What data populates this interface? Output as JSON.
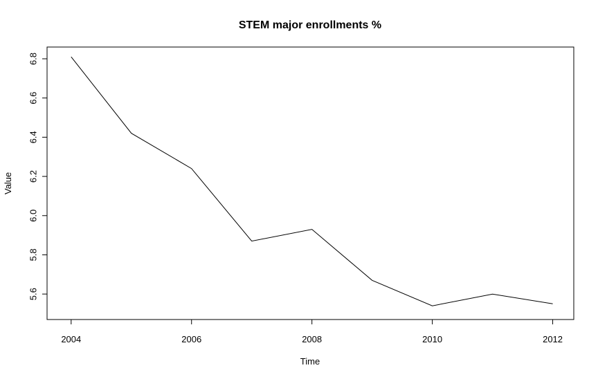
{
  "chart_data": {
    "type": "line",
    "title": "STEM major enrollments %",
    "xlabel": "Time",
    "ylabel": "Value",
    "x": [
      2004,
      2005,
      2006,
      2007,
      2008,
      2009,
      2010,
      2011,
      2012
    ],
    "series": [
      {
        "values": [
          6.81,
          6.42,
          6.24,
          5.87,
          5.93,
          5.67,
          5.54,
          5.6,
          5.55
        ]
      }
    ],
    "xlim": [
      2003.6,
      2012.35
    ],
    "ylim": [
      5.47,
      6.86
    ],
    "xticks": [
      2004,
      2006,
      2008,
      2010,
      2012
    ],
    "xtick_labels": [
      "2004",
      "2006",
      "2008",
      "2010",
      "2012"
    ],
    "yticks": [
      5.6,
      5.8,
      6.0,
      6.2,
      6.4,
      6.6,
      6.8
    ],
    "ytick_labels": [
      "5.6",
      "5.8",
      "6.0",
      "6.2",
      "6.4",
      "6.6",
      "6.8"
    ],
    "grid": false,
    "line_color": "#000000"
  }
}
